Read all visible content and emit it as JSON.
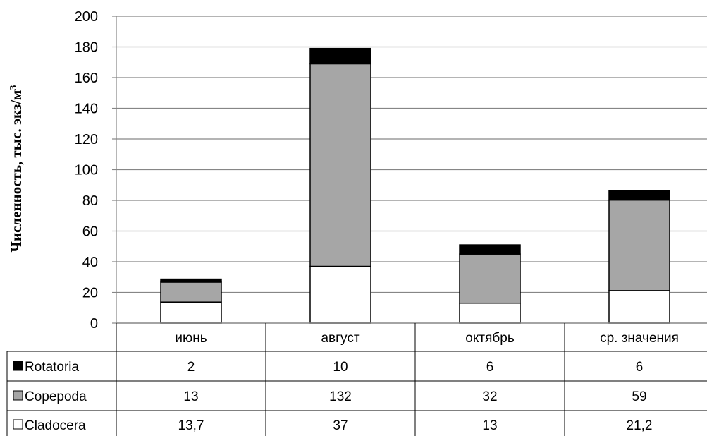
{
  "chart_data": {
    "type": "bar",
    "stacked": true,
    "categories": [
      "июнь",
      "август",
      "октябрь",
      "ср. значения"
    ],
    "series": [
      {
        "name": "Cladocera",
        "values": [
          13.7,
          37,
          13,
          21.2
        ],
        "value_labels": [
          "13,7",
          "37",
          "13",
          "21,2"
        ],
        "color": "#ffffff"
      },
      {
        "name": "Copepoda",
        "values": [
          13,
          132,
          32,
          59
        ],
        "value_labels": [
          "13",
          "132",
          "32",
          "59"
        ],
        "color": "#a6a6a6"
      },
      {
        "name": "Rotatoria",
        "values": [
          2,
          10,
          6,
          6
        ],
        "value_labels": [
          "2",
          "10",
          "6",
          "6"
        ],
        "color": "#000000"
      }
    ],
    "ylabel_main": "Численность, тыс. экз/м",
    "ylabel_sup": "3",
    "ylim": [
      0,
      200
    ],
    "yticks": [
      0,
      20,
      40,
      60,
      80,
      100,
      120,
      140,
      160,
      180,
      200
    ],
    "grid": true,
    "legend": "data-table"
  }
}
